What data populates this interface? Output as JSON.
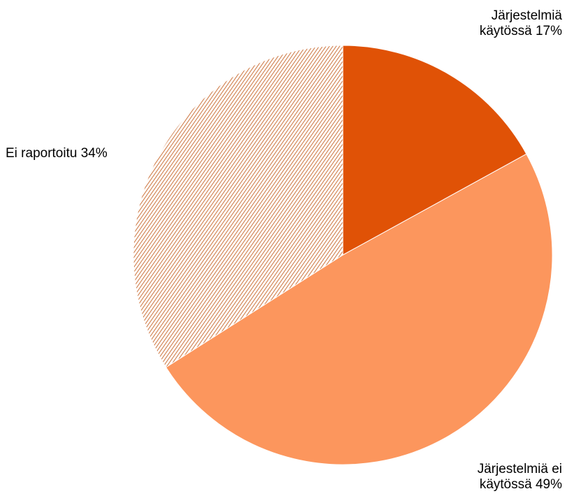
{
  "chart_data": {
    "type": "pie",
    "start_angle": "12 o'clock",
    "direction": "clockwise",
    "slices": [
      {
        "category": "Järjestelmiä käytössä",
        "value": 17,
        "label_lines": [
          "Järjestelmiä",
          "käytössä 17%"
        ],
        "color": "#e05206",
        "fill_style": "solid",
        "label_position": "top-right",
        "label_align": "end"
      },
      {
        "category": "Järjestelmiä ei käytössä",
        "value": 49,
        "label_lines": [
          "Järjestelmiä ei",
          "käytössä 49%"
        ],
        "color": "#fc965d",
        "fill_style": "solid",
        "label_position": "bottom-right",
        "label_align": "end"
      },
      {
        "category": "Ei raportoitu",
        "value": 34,
        "label_lines": [
          "Ei raportoitu 34%"
        ],
        "color": "#c0530f",
        "fill_style": "diagonal-hatch",
        "label_position": "left",
        "label_align": "start"
      }
    ]
  }
}
